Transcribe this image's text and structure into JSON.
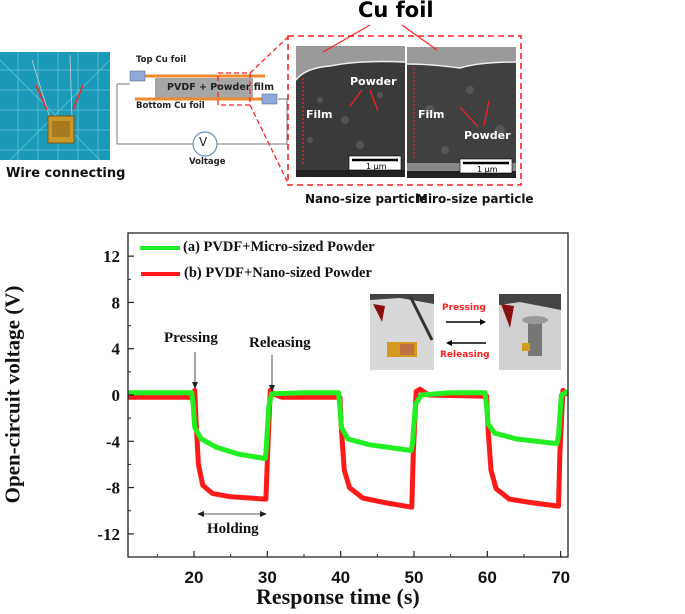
{
  "top_panel": {
    "photo_caption": "Wire connecting",
    "top_foil_label": "Top Cu foil",
    "bottom_foil_label": "Bottom Cu foil",
    "film_label": "PVDF + Powder film",
    "voltmeter_symbol": "V",
    "voltmeter_label": "Voltage",
    "cu_foil_title": "Cu foil",
    "sem_left": {
      "film_label": "Film",
      "powder_label": "Powder",
      "scale_bar": "1 μm",
      "caption": "Nano-size particle"
    },
    "sem_right": {
      "film_label": "Film",
      "powder_label": "Powder",
      "scale_bar": "1 μm",
      "caption": "Miro-size particle"
    },
    "colors": {
      "foil": "#f08a30",
      "film": "#a6a6a6",
      "connector": "#8fa9d8",
      "callout": "#ff2020"
    }
  },
  "chart_data": {
    "type": "line",
    "xlabel": "Response time (s)",
    "ylabel": "Open-circuit voltage (V)",
    "xlim": [
      11,
      71
    ],
    "ylim": [
      -14,
      14
    ],
    "xticks": [
      20,
      30,
      40,
      50,
      60,
      70
    ],
    "yticks": [
      -12,
      -8,
      -4,
      0,
      4,
      8,
      12
    ],
    "grid": false,
    "legend_position": "top-left",
    "series": [
      {
        "name": "(a) PVDF+Micro-sized Powder",
        "color": "#22ee22",
        "x": [
          11,
          19.7,
          19.9,
          20.1,
          21,
          23,
          26,
          29.7,
          29.8,
          30.2,
          30.6,
          35,
          39.7,
          39.9,
          40.1,
          41,
          44,
          49.6,
          49.8,
          50.2,
          51,
          55,
          59.7,
          59.9,
          60.1,
          61,
          64,
          69.5,
          69.7,
          70.1,
          71
        ],
        "y": [
          0.2,
          0.2,
          -1,
          -2.8,
          -3.8,
          -4.5,
          -5.1,
          -5.5,
          -5,
          -1,
          0.1,
          0.2,
          0.2,
          -1,
          -2.8,
          -3.8,
          -4.3,
          -4.8,
          -4.2,
          -0.8,
          0,
          0.2,
          0.2,
          -1,
          -2.5,
          -3.3,
          -3.8,
          -4.2,
          -3.5,
          0,
          0.3
        ]
      },
      {
        "name": "(b) PVDF+Nano-sized Powder",
        "color": "#ff1a1a",
        "x": [
          11,
          19.8,
          20.1,
          20.3,
          20.6,
          21.2,
          22.5,
          25,
          29.8,
          30.1,
          30.4,
          30.8,
          32,
          39.9,
          40.1,
          40.5,
          41.2,
          43,
          46,
          49.7,
          49.9,
          50.3,
          50.8,
          52,
          59.9,
          60.1,
          60.5,
          61.2,
          63,
          66,
          69.7,
          69.9,
          70.3,
          70.7,
          71
        ],
        "y": [
          -0.2,
          -0.2,
          0.4,
          -2.5,
          -6,
          -7.8,
          -8.5,
          -8.8,
          -9,
          -4,
          0.4,
          0.1,
          -0.2,
          -0.2,
          -3,
          -6.5,
          -8,
          -8.9,
          -9.3,
          -9.7,
          -5,
          0.3,
          0.5,
          0,
          -0.1,
          -3,
          -6.5,
          -8.1,
          -9,
          -9.3,
          -9.6,
          -5,
          0.4,
          0.1,
          0.1
        ]
      }
    ],
    "annotations": {
      "pressing": "Pressing",
      "releasing": "Releasing",
      "holding": "Holding",
      "inset_pressing": "Pressing",
      "inset_releasing": "Releasing"
    }
  }
}
